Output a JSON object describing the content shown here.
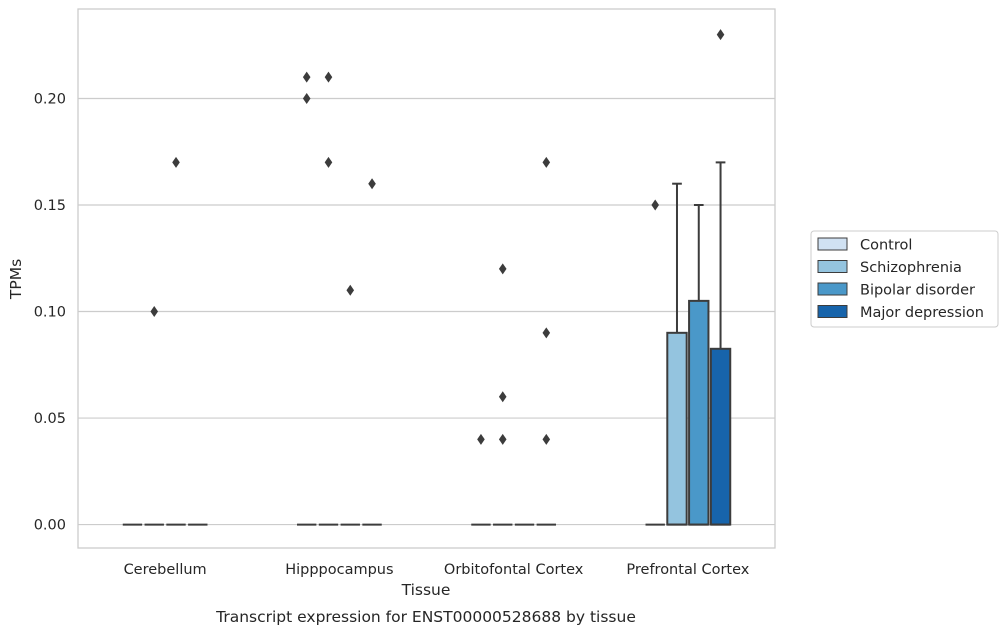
{
  "chart_data": {
    "type": "boxplot",
    "title": "",
    "xlabel": "Tissue",
    "ylabel": "TPMs",
    "caption": "Transcript expression for ENST00000528688 by tissue",
    "ylim": [
      -0.011,
      0.242
    ],
    "yticks": [
      "0.00",
      "0.05",
      "0.10",
      "0.15",
      "0.20"
    ],
    "yticks_values": [
      0.0,
      0.05,
      0.1,
      0.15,
      0.2
    ],
    "grid": "horizontal",
    "legend_position": "right",
    "categories": [
      "Cerebellum",
      "Hipppocampus",
      "Orbitofontal Cortex",
      "Prefrontal Cortex"
    ],
    "series": [
      {
        "name": "Control",
        "color": "#d0e1f2"
      },
      {
        "name": "Schizophrenia",
        "color": "#94c4df"
      },
      {
        "name": "Bipolar disorder",
        "color": "#4a98c9"
      },
      {
        "name": "Major depression",
        "color": "#1764ab"
      }
    ],
    "boxes": [
      {
        "category": "Cerebellum",
        "series": "Control",
        "q1": 0,
        "median": 0,
        "q3": 0,
        "whisker_low": 0,
        "whisker_high": 0,
        "outliers": []
      },
      {
        "category": "Cerebellum",
        "series": "Schizophrenia",
        "q1": 0,
        "median": 0,
        "q3": 0,
        "whisker_low": 0,
        "whisker_high": 0,
        "outliers": [
          0.1
        ]
      },
      {
        "category": "Cerebellum",
        "series": "Bipolar disorder",
        "q1": 0,
        "median": 0,
        "q3": 0,
        "whisker_low": 0,
        "whisker_high": 0,
        "outliers": [
          0.17
        ]
      },
      {
        "category": "Cerebellum",
        "series": "Major depression",
        "q1": 0,
        "median": 0,
        "q3": 0,
        "whisker_low": 0,
        "whisker_high": 0,
        "outliers": []
      },
      {
        "category": "Hipppocampus",
        "series": "Control",
        "q1": 0,
        "median": 0,
        "q3": 0,
        "whisker_low": 0,
        "whisker_high": 0,
        "outliers": [
          0.2,
          0.21
        ]
      },
      {
        "category": "Hipppocampus",
        "series": "Schizophrenia",
        "q1": 0,
        "median": 0,
        "q3": 0,
        "whisker_low": 0,
        "whisker_high": 0,
        "outliers": [
          0.17,
          0.21
        ]
      },
      {
        "category": "Hipppocampus",
        "series": "Bipolar disorder",
        "q1": 0,
        "median": 0,
        "q3": 0,
        "whisker_low": 0,
        "whisker_high": 0,
        "outliers": [
          0.11
        ]
      },
      {
        "category": "Hipppocampus",
        "series": "Major depression",
        "q1": 0,
        "median": 0,
        "q3": 0,
        "whisker_low": 0,
        "whisker_high": 0,
        "outliers": [
          0.16
        ]
      },
      {
        "category": "Orbitofontal Cortex",
        "series": "Control",
        "q1": 0,
        "median": 0,
        "q3": 0,
        "whisker_low": 0,
        "whisker_high": 0,
        "outliers": [
          0.04
        ]
      },
      {
        "category": "Orbitofontal Cortex",
        "series": "Schizophrenia",
        "q1": 0,
        "median": 0,
        "q3": 0,
        "whisker_low": 0,
        "whisker_high": 0,
        "outliers": [
          0.04,
          0.06,
          0.12
        ]
      },
      {
        "category": "Orbitofontal Cortex",
        "series": "Bipolar disorder",
        "q1": 0,
        "median": 0,
        "q3": 0,
        "whisker_low": 0,
        "whisker_high": 0,
        "outliers": []
      },
      {
        "category": "Orbitofontal Cortex",
        "series": "Major depression",
        "q1": 0,
        "median": 0,
        "q3": 0,
        "whisker_low": 0,
        "whisker_high": 0,
        "outliers": [
          0.04,
          0.09,
          0.17
        ]
      },
      {
        "category": "Prefrontal Cortex",
        "series": "Control",
        "q1": 0,
        "median": 0,
        "q3": 0,
        "whisker_low": 0,
        "whisker_high": 0,
        "outliers": [
          0.15
        ]
      },
      {
        "category": "Prefrontal Cortex",
        "series": "Schizophrenia",
        "q1": 0,
        "median": 0,
        "q3": 0.09,
        "whisker_low": 0,
        "whisker_high": 0.16,
        "outliers": []
      },
      {
        "category": "Prefrontal Cortex",
        "series": "Bipolar disorder",
        "q1": 0,
        "median": 0,
        "q3": 0.105,
        "whisker_low": 0,
        "whisker_high": 0.15,
        "outliers": []
      },
      {
        "category": "Prefrontal Cortex",
        "series": "Major depression",
        "q1": 0,
        "median": 0,
        "q3": 0.0825,
        "whisker_low": 0,
        "whisker_high": 0.17,
        "outliers": [
          0.23
        ]
      }
    ]
  }
}
